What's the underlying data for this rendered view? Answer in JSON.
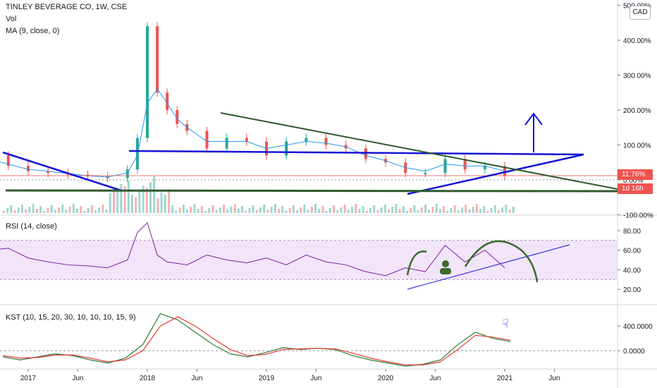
{
  "header": {
    "title": "TINLEY BEVERAGE CO, 1W, CSE",
    "vol_label": "Vol",
    "ma_label": "MA (9, close, 0)",
    "rsi_label": "RSI (14, close)",
    "kst_label": "KST (10, 15, 20, 30, 10, 10, 10, 15, 9)",
    "currency": "CAD"
  },
  "price_tags": {
    "last_change": "11.76%",
    "countdown": "1d 16h"
  },
  "colors": {
    "up_candle": "#26a69a",
    "down_candle": "#ef5350",
    "ma_line": "#2196f3",
    "trendline_blue": "#1515d6",
    "trendline_green": "#2e5a2e",
    "rsi_line": "#7b1fa2",
    "rsi_band": "#ecd9f6",
    "kst_line": "#2e7d32",
    "kst_signal": "#e53935",
    "drawing_green": "#3a6b2a"
  },
  "chart_data": [
    {
      "type": "candlestick",
      "pane": "price",
      "title": "TINLEY BEVERAGE CO, 1W, CSE",
      "y_scale": "percent",
      "y_ticks": [
        "-100.00%",
        "0.00%",
        "100.00%",
        "200.00%",
        "300.00%",
        "400.00%",
        "500.00%"
      ],
      "ylim": [
        -100,
        500
      ],
      "x_ticks": [
        "2017",
        "Jun",
        "2018",
        "Jun",
        "2019",
        "Jun",
        "2020",
        "Jun",
        "2021",
        "Jun"
      ],
      "x": [
        "2016-09",
        "2016-11",
        "2017-01",
        "2017-03",
        "2017-05",
        "2017-07",
        "2017-09",
        "2017-11",
        "2017-12",
        "2018-01",
        "2018-02",
        "2018-03",
        "2018-04",
        "2018-05",
        "2018-07",
        "2018-09",
        "2018-11",
        "2019-01",
        "2019-03",
        "2019-05",
        "2019-07",
        "2019-09",
        "2019-11",
        "2020-01",
        "2020-03",
        "2020-05",
        "2020-07",
        "2020-09",
        "2020-11",
        "2021-01"
      ],
      "close": [
        70,
        40,
        25,
        20,
        15,
        10,
        5,
        30,
        120,
        440,
        250,
        200,
        160,
        140,
        90,
        120,
        110,
        70,
        110,
        120,
        100,
        90,
        60,
        50,
        20,
        20,
        60,
        30,
        40,
        12
      ],
      "ma": [
        60,
        45,
        30,
        25,
        18,
        12,
        8,
        20,
        70,
        220,
        260,
        220,
        175,
        150,
        110,
        110,
        110,
        90,
        100,
        110,
        105,
        95,
        70,
        55,
        35,
        25,
        45,
        40,
        40,
        25
      ],
      "last_value_label": "11.76%"
    },
    {
      "type": "line",
      "pane": "rsi",
      "title": "RSI (14, close)",
      "y_ticks": [
        "20.00",
        "40.00",
        "60.00",
        "80.00"
      ],
      "ylim": [
        10,
        90
      ],
      "band": [
        30,
        70
      ],
      "x": [
        "2016-09",
        "2016-11",
        "2017-01",
        "2017-03",
        "2017-05",
        "2017-07",
        "2017-09",
        "2017-11",
        "2017-12",
        "2018-01",
        "2018-02",
        "2018-03",
        "2018-05",
        "2018-07",
        "2018-09",
        "2018-11",
        "2019-01",
        "2019-03",
        "2019-05",
        "2019-07",
        "2019-09",
        "2019-11",
        "2020-01",
        "2020-03",
        "2020-05",
        "2020-07",
        "2020-09",
        "2020-11",
        "2021-01"
      ],
      "values": [
        60,
        62,
        52,
        48,
        45,
        44,
        42,
        50,
        78,
        88,
        55,
        48,
        45,
        55,
        50,
        47,
        52,
        45,
        55,
        48,
        45,
        38,
        34,
        42,
        38,
        65,
        48,
        60,
        42
      ]
    },
    {
      "type": "line",
      "pane": "kst",
      "title": "KST (10, 15, 20, 30, 10, 10, 10, 15, 9)",
      "y_ticks": [
        "0.0000",
        "400.0000"
      ],
      "ylim": [
        -250,
        700
      ],
      "series": [
        {
          "values": [
            -100,
            -150,
            -100,
            -50,
            -80,
            -150,
            -200,
            -120,
            100,
            600,
            500,
            300,
            100,
            -50,
            -100,
            -30,
            50,
            20,
            40,
            20,
            -80,
            -150,
            -200,
            -250,
            -220,
            -150,
            100,
            300,
            200,
            150
          ]
        },
        {
          "values": [
            -80,
            -120,
            -110,
            -70,
            -70,
            -120,
            -180,
            -150,
            0,
            400,
            550,
            400,
            200,
            20,
            -80,
            -60,
            20,
            30,
            40,
            30,
            -40,
            -120,
            -180,
            -230,
            -230,
            -180,
            20,
            250,
            220,
            170
          ]
        }
      ]
    }
  ]
}
